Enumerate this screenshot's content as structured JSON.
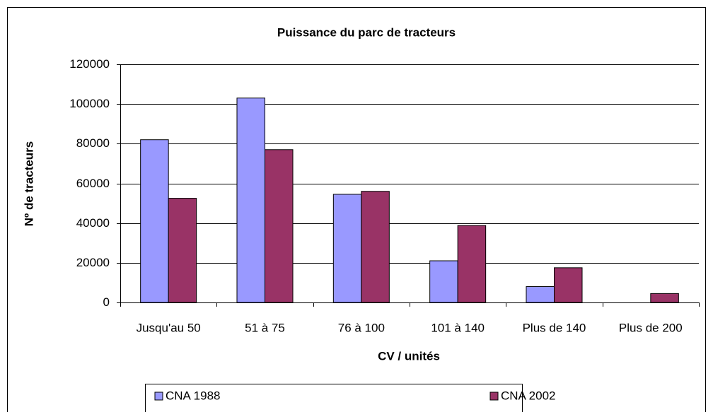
{
  "chart_data": {
    "type": "bar",
    "title": "Puissance du parc de tracteurs",
    "x_label": "CV / unités",
    "y_label": "Nº de tracteurs",
    "categories": [
      "Jusqu'au 50",
      "51 à 75",
      "76 à 100",
      "101 à 140",
      "Plus de 140",
      "Plus de 200"
    ],
    "series": [
      {
        "name": "CNA 1988",
        "color": "#9999ff",
        "values": [
          82000,
          103000,
          54500,
          21000,
          8000,
          0
        ]
      },
      {
        "name": "CNA 2002",
        "color": "#993366",
        "values": [
          52500,
          77000,
          56000,
          38800,
          17500,
          4500
        ]
      }
    ],
    "ylim": [
      0,
      120000
    ],
    "yticks": [
      0,
      20000,
      40000,
      60000,
      80000,
      100000,
      120000
    ],
    "grid": true
  }
}
